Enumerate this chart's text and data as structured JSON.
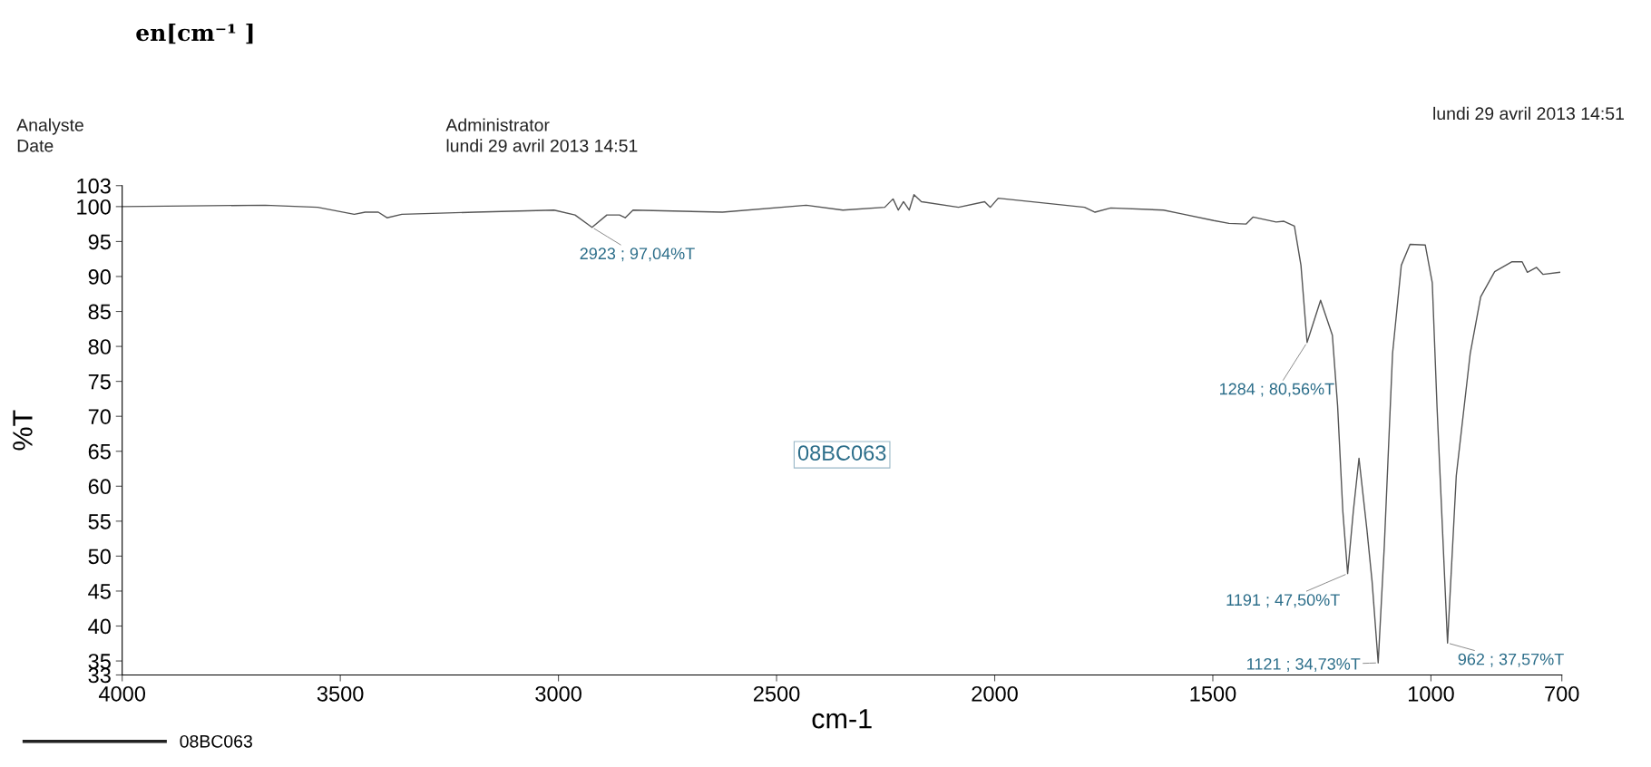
{
  "chart_data": {
    "type": "line",
    "title": "en[cm⁻¹ ]",
    "xlabel": "cm-1",
    "ylabel": "%T",
    "xlim": [
      4000,
      700
    ],
    "xticks": [
      4000,
      3500,
      3000,
      2500,
      2000,
      1500,
      1000,
      700
    ],
    "ylim": [
      33,
      103
    ],
    "yticks": [
      33,
      35,
      40,
      45,
      50,
      55,
      60,
      65,
      70,
      75,
      80,
      85,
      90,
      95,
      100,
      103
    ],
    "grid": false,
    "legend": "bottom left",
    "marker": "none",
    "line_style": "solid",
    "series": [
      {
        "name": "08BC063",
        "color": "#555555",
        "x": [
          4000,
          3672,
          3552,
          3468,
          3443,
          3413,
          3393,
          3359,
          3191,
          3010,
          2962,
          2923,
          2889,
          2860,
          2847,
          2829,
          2624,
          2432,
          2348,
          2252,
          2233,
          2221,
          2209,
          2196,
          2185,
          2168,
          2083,
          2023,
          2010,
          1992,
          1794,
          1770,
          1734,
          1613,
          1574,
          1498,
          1463,
          1424,
          1408,
          1355,
          1337,
          1313,
          1298,
          1284,
          1253,
          1226,
          1214,
          1202,
          1191,
          1178,
          1165,
          1147,
          1135,
          1121,
          1107,
          1088,
          1068,
          1048,
          1013,
          997,
          986,
          962,
          942,
          910,
          886,
          854,
          815,
          791,
          779,
          758,
          743,
          705
        ],
        "values": [
          100,
          100.2,
          99.9,
          98.9,
          99.2,
          99.2,
          98.4,
          98.9,
          99.2,
          99.5,
          98.8,
          97.04,
          98.8,
          98.8,
          98.4,
          99.5,
          99.2,
          100.2,
          99.5,
          99.9,
          101.1,
          99.5,
          100.7,
          99.5,
          101.7,
          100.7,
          99.9,
          100.7,
          99.9,
          101.2,
          99.9,
          99.2,
          99.8,
          99.5,
          99.0,
          98.0,
          97.6,
          97.5,
          98.5,
          97.8,
          97.9,
          97.2,
          91.6,
          80.56,
          86.6,
          81.6,
          71.5,
          56.4,
          47.5,
          56.4,
          64.0,
          53.9,
          46.4,
          34.73,
          51.4,
          79.0,
          91.6,
          94.6,
          94.5,
          89.1,
          71.2,
          37.57,
          61.5,
          79.0,
          87.1,
          90.7,
          92.1,
          92.1,
          90.6,
          91.3,
          90.3,
          90.6
        ]
      }
    ],
    "annotations": [
      "Analyste",
      "Date",
      "Administrator",
      "lundi 29 avril 2013 14:51",
      "lundi 29 avril 2013 14:51",
      "08BC063",
      {
        "text": "2923 ; 97,04%T",
        "x": 2923,
        "y": 97.04
      },
      {
        "text": "1284 ; 80,56%T",
        "x": 1284,
        "y": 80.56
      },
      {
        "text": "1191 ; 47,50%T",
        "x": 1191,
        "y": 47.5
      },
      {
        "text": "1121 ; 34,73%T",
        "x": 1121,
        "y": 34.73
      },
      {
        "text": "962 ; 37,57%T",
        "x": 962,
        "y": 37.57
      }
    ]
  }
}
